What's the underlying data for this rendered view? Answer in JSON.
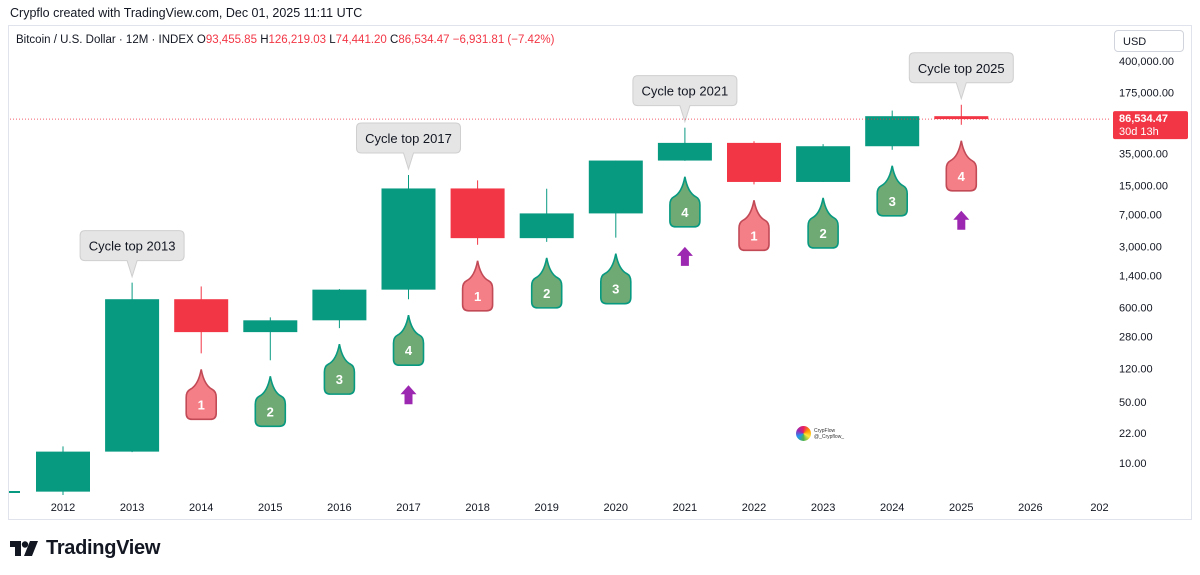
{
  "header": {
    "text": "Crypflo created with TradingView.com, Dec 01, 2025 11:11 UTC"
  },
  "legend": {
    "symbol": "Bitcoin / U.S. Dollar · 12M · INDEX",
    "open_label": "O",
    "open": "93,455.85",
    "high_label": "H",
    "high": "126,219.03",
    "low_label": "L",
    "low": "74,441.20",
    "close_label": "C",
    "close": "86,534.47",
    "change": "−6,931.81 (−7.42%)"
  },
  "currency_button": "USD",
  "brand": {
    "name": "TradingView",
    "icon": "tradingview-logo-icon"
  },
  "watermark": {
    "line1": "CrypFlow",
    "line2": "@_Crypflow_"
  },
  "colors": {
    "up": "#089981",
    "down": "#f23645",
    "bubble_red": "#f47f86",
    "bubble_green": "#6faa74",
    "arrow": "#9c27b0"
  },
  "chart_data": {
    "type": "candlestick",
    "title": "Bitcoin / U.S. Dollar · 12M · INDEX",
    "y_scale": "log",
    "y_ticks": [
      "400,000.00",
      "175,000.00",
      "35,000.00",
      "15,000.00",
      "7,000.00",
      "3,000.00",
      "1,400.00",
      "600.00",
      "280.00",
      "120.00",
      "50.00",
      "22.00",
      "10.00"
    ],
    "x_ticks": [
      "2012",
      "2013",
      "2014",
      "2015",
      "2016",
      "2017",
      "2018",
      "2019",
      "2020",
      "2021",
      "2022",
      "2023",
      "2024",
      "2025",
      "2026",
      "202"
    ],
    "candles": [
      {
        "year": "2012",
        "open": 4.7,
        "high": 15.5,
        "low": 4.3,
        "close": 13.5
      },
      {
        "year": "2013",
        "open": 13.5,
        "high": 1160,
        "low": 13.3,
        "close": 750
      },
      {
        "year": "2014",
        "open": 750,
        "high": 1050,
        "low": 180,
        "close": 315
      },
      {
        "year": "2015",
        "open": 315,
        "high": 465,
        "low": 150,
        "close": 430
      },
      {
        "year": "2016",
        "open": 430,
        "high": 980,
        "low": 350,
        "close": 965
      },
      {
        "year": "2017",
        "open": 965,
        "high": 19800,
        "low": 750,
        "close": 13900
      },
      {
        "year": "2018",
        "open": 13900,
        "high": 17200,
        "low": 3150,
        "close": 3750
      },
      {
        "year": "2019",
        "open": 3750,
        "high": 13800,
        "low": 3400,
        "close": 7200
      },
      {
        "year": "2020",
        "open": 7200,
        "high": 29000,
        "low": 3800,
        "close": 29000
      },
      {
        "year": "2021",
        "open": 29000,
        "high": 69000,
        "low": 28800,
        "close": 46200
      },
      {
        "year": "2022",
        "open": 46200,
        "high": 48200,
        "low": 15500,
        "close": 16500
      },
      {
        "year": "2023",
        "open": 16500,
        "high": 44700,
        "low": 16500,
        "close": 42300
      },
      {
        "year": "2024",
        "open": 42300,
        "high": 108300,
        "low": 38500,
        "close": 93400
      },
      {
        "year": "2025",
        "open": 93455.85,
        "high": 126219.03,
        "low": 74441.2,
        "close": 86534.47
      }
    ],
    "price_label": {
      "value": "86,534.47",
      "countdown": "30d 13h"
    },
    "callouts": [
      {
        "text": "Cycle top 2013",
        "year": "2013"
      },
      {
        "text": "Cycle top 2017",
        "year": "2017"
      },
      {
        "text": "Cycle top 2021",
        "year": "2021"
      },
      {
        "text": "Cycle top 2025",
        "year": "2025"
      }
    ],
    "year_markers": [
      {
        "year": "2014",
        "label": "1",
        "color": "red"
      },
      {
        "year": "2015",
        "label": "2",
        "color": "green"
      },
      {
        "year": "2016",
        "label": "3",
        "color": "green"
      },
      {
        "year": "2017",
        "label": "4",
        "color": "green"
      },
      {
        "year": "2018",
        "label": "1",
        "color": "red"
      },
      {
        "year": "2019",
        "label": "2",
        "color": "green"
      },
      {
        "year": "2020",
        "label": "3",
        "color": "green"
      },
      {
        "year": "2021",
        "label": "4",
        "color": "green"
      },
      {
        "year": "2022",
        "label": "1",
        "color": "red"
      },
      {
        "year": "2023",
        "label": "2",
        "color": "green"
      },
      {
        "year": "2024",
        "label": "3",
        "color": "green"
      },
      {
        "year": "2025",
        "label": "4",
        "color": "red"
      }
    ],
    "up_arrows": [
      "2017",
      "2021",
      "2025"
    ]
  }
}
